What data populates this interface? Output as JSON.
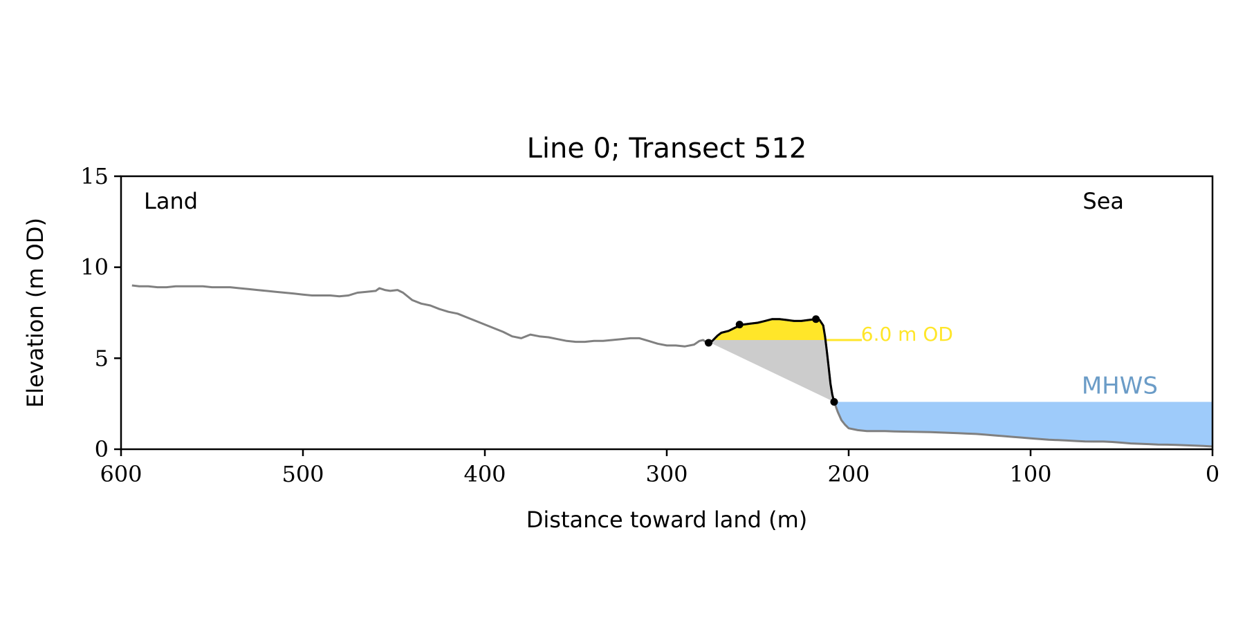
{
  "chart_data": {
    "type": "line",
    "title": "Line 0; Transect 512",
    "xlabel": "Distance toward land (m)",
    "ylabel": "Elevation (m OD)",
    "xlim": [
      600,
      0
    ],
    "ylim": [
      0,
      15
    ],
    "x_ticks": [
      600,
      500,
      400,
      300,
      200,
      100,
      0
    ],
    "y_ticks": [
      0,
      5,
      10,
      15
    ],
    "grid": false,
    "annotations": {
      "land": "Land",
      "sea": "Sea",
      "threshold_label": "6.0 m OD",
      "mhws_label": "MHWS"
    },
    "threshold_elevation": 6.0,
    "mhws_elevation": 2.6,
    "colors": {
      "profile": "#808080",
      "dune": "#000000",
      "dune_fill_above": "#ffe629",
      "dune_fill_below": "#cccccc",
      "threshold": "#ffe629",
      "mhws_fill": "#9ecbfa",
      "mhws_label": "#6b9cc7"
    },
    "profile": {
      "x": [
        594,
        590,
        585,
        580,
        575,
        570,
        565,
        560,
        555,
        550,
        545,
        540,
        535,
        530,
        525,
        520,
        515,
        510,
        505,
        500,
        495,
        490,
        485,
        480,
        475,
        470,
        465,
        460,
        458,
        455,
        452,
        448,
        445,
        440,
        435,
        430,
        425,
        420,
        415,
        410,
        405,
        400,
        395,
        390,
        385,
        380,
        375,
        370,
        365,
        360,
        355,
        350,
        345,
        340,
        335,
        330,
        325,
        320,
        315,
        310,
        305,
        300,
        295,
        290,
        285,
        282,
        280,
        278,
        276,
        274,
        272,
        270,
        266,
        262,
        258,
        254,
        250,
        246,
        242,
        238,
        234,
        230,
        226,
        222,
        218,
        216,
        214,
        213,
        212,
        211,
        210,
        209,
        208,
        206,
        204,
        202,
        200,
        195,
        190,
        185,
        180,
        175,
        170,
        165,
        160,
        155,
        150,
        145,
        140,
        135,
        130,
        125,
        120,
        115,
        110,
        105,
        100,
        95,
        90,
        85,
        80,
        75,
        70,
        65,
        60,
        55,
        50,
        45,
        40,
        35,
        30,
        25,
        20,
        15,
        10,
        5,
        0
      ],
      "y": [
        9.0,
        8.95,
        8.95,
        8.9,
        8.9,
        8.95,
        8.95,
        8.95,
        8.95,
        8.9,
        8.9,
        8.9,
        8.85,
        8.8,
        8.75,
        8.7,
        8.65,
        8.6,
        8.55,
        8.5,
        8.45,
        8.45,
        8.45,
        8.4,
        8.45,
        8.6,
        8.65,
        8.7,
        8.85,
        8.75,
        8.7,
        8.75,
        8.6,
        8.2,
        8.0,
        7.9,
        7.7,
        7.55,
        7.45,
        7.25,
        7.05,
        6.85,
        6.65,
        6.45,
        6.2,
        6.1,
        6.3,
        6.2,
        6.15,
        6.05,
        5.95,
        5.9,
        5.9,
        5.95,
        5.95,
        6.0,
        6.05,
        6.1,
        6.1,
        5.95,
        5.8,
        5.7,
        5.7,
        5.65,
        5.75,
        5.95,
        6.0,
        5.85,
        5.85,
        6.05,
        6.25,
        6.4,
        6.5,
        6.7,
        6.85,
        6.9,
        6.95,
        7.05,
        7.15,
        7.15,
        7.1,
        7.05,
        7.05,
        7.1,
        7.15,
        7.1,
        6.8,
        6.2,
        5.4,
        4.5,
        3.6,
        3.0,
        2.6,
        2.05,
        1.6,
        1.35,
        1.15,
        1.05,
        1.0,
        1.0,
        1.0,
        0.98,
        0.97,
        0.96,
        0.95,
        0.94,
        0.92,
        0.9,
        0.88,
        0.86,
        0.84,
        0.8,
        0.76,
        0.72,
        0.68,
        0.64,
        0.6,
        0.56,
        0.52,
        0.5,
        0.48,
        0.45,
        0.43,
        0.42,
        0.42,
        0.4,
        0.36,
        0.32,
        0.3,
        0.28,
        0.26,
        0.25,
        0.24,
        0.22,
        0.2,
        0.18,
        0.15
      ]
    },
    "dune_points": {
      "x": [
        277,
        260,
        218,
        208
      ],
      "y": [
        5.85,
        6.85,
        7.15,
        2.6
      ]
    }
  }
}
